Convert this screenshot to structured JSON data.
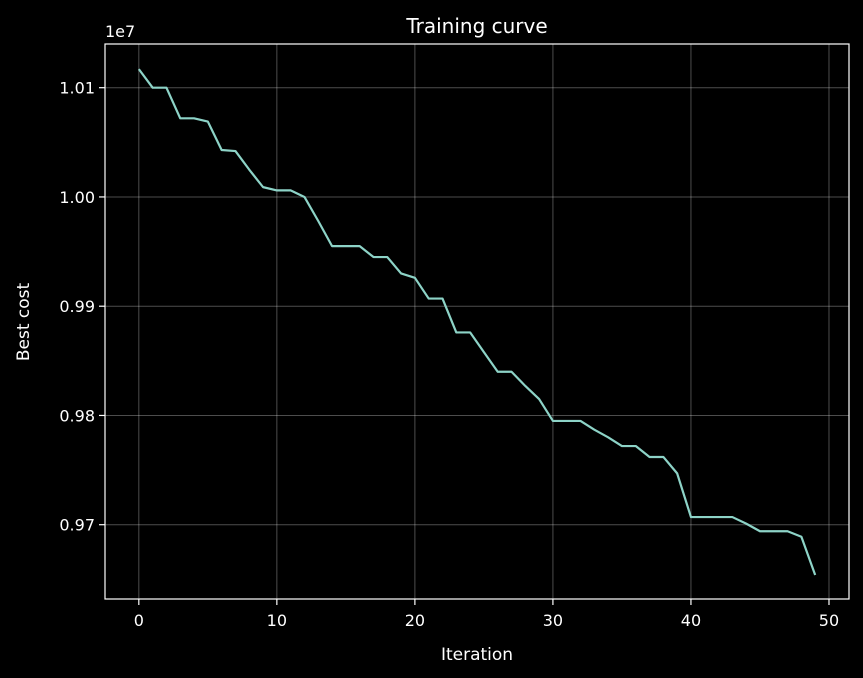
{
  "chart_data": {
    "type": "line",
    "title": "Training curve",
    "xlabel": "Iteration",
    "ylabel": "Best cost",
    "offset_text": "1e7",
    "x_ticks": [
      0,
      10,
      20,
      30,
      40,
      50
    ],
    "y_ticks": [
      0.97,
      0.98,
      0.99,
      1.0,
      1.01
    ],
    "y_tick_labels": [
      "0.97",
      "0.98",
      "0.99",
      "1.00",
      "1.01"
    ],
    "xlim": [
      -2.45,
      51.45
    ],
    "ylim": [
      0.9632,
      1.014
    ],
    "grid": true,
    "colors": {
      "background": "#000000",
      "line": "#8dd3c7",
      "text": "#ffffff",
      "grid": "#ffffff"
    },
    "series": [
      {
        "x": [
          0,
          1,
          2,
          3,
          4,
          5,
          6,
          7,
          8,
          9,
          10,
          11,
          12,
          13,
          14,
          15,
          16,
          17,
          18,
          19,
          20,
          21,
          22,
          23,
          24,
          25,
          26,
          27,
          28,
          29,
          30,
          31,
          32,
          33,
          34,
          35,
          36,
          37,
          38,
          39,
          40,
          41,
          42,
          43,
          44,
          45,
          46,
          47,
          48,
          49
        ],
        "values": [
          1.0117,
          1.01,
          1.01,
          1.0072,
          1.0072,
          1.0069,
          1.0043,
          1.0042,
          1.0025,
          1.0009,
          1.0006,
          1.0006,
          1.0,
          0.9978,
          0.9955,
          0.9955,
          0.9955,
          0.9945,
          0.9945,
          0.993,
          0.9926,
          0.9907,
          0.9907,
          0.9876,
          0.9876,
          0.9858,
          0.984,
          0.984,
          0.9827,
          0.9815,
          0.9795,
          0.9795,
          0.9795,
          0.9787,
          0.978,
          0.9772,
          0.9772,
          0.9762,
          0.9762,
          0.9747,
          0.9707,
          0.9707,
          0.9707,
          0.9707,
          0.9701,
          0.9694,
          0.9694,
          0.9694,
          0.9689,
          0.9654
        ]
      }
    ]
  }
}
